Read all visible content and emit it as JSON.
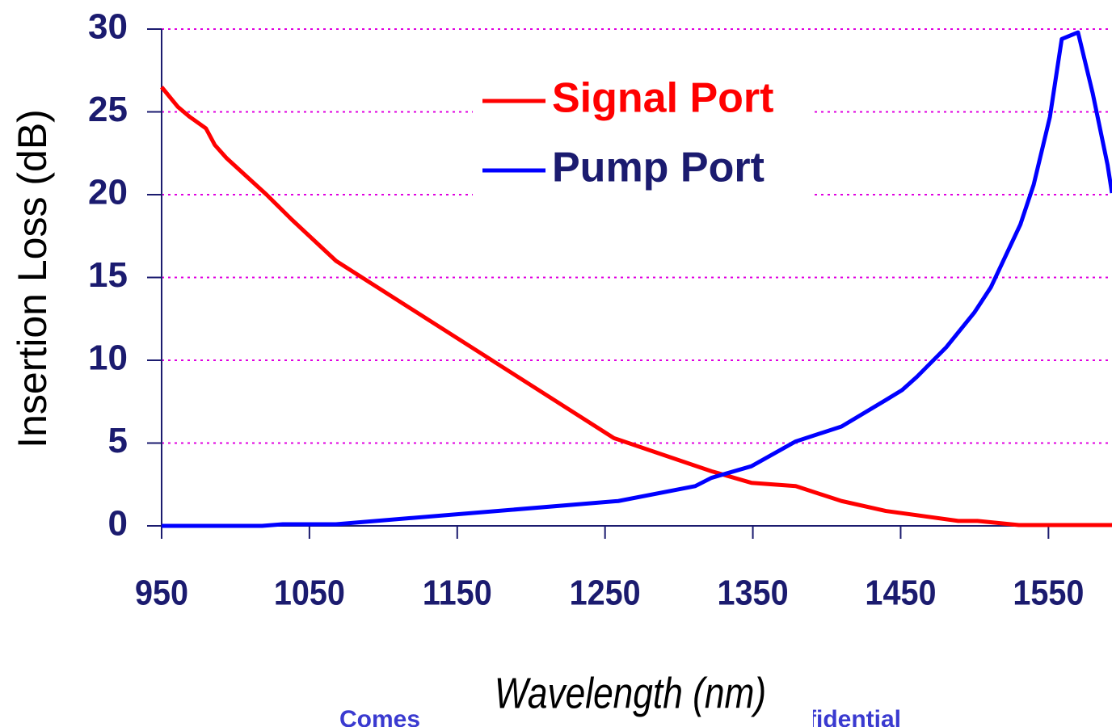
{
  "chart_data": {
    "type": "line",
    "x_label": "Wavelength (nm)",
    "y_label": "Insertion Loss (dB)",
    "footer": [
      "Comes",
      "fidential"
    ],
    "xlim": [
      950,
      1593
    ],
    "ylim": [
      0,
      30
    ],
    "xticks": [
      950,
      1050,
      1150,
      1250,
      1350,
      1450,
      1550
    ],
    "yticks": [
      0,
      5,
      10,
      15,
      20,
      25,
      30
    ],
    "grid": true,
    "grid_color": "#e000e0",
    "legend": "upper center",
    "series": [
      {
        "name": "Signal Port",
        "color": "#ff0000",
        "x": [
          950,
          961,
          969,
          980,
          986,
          994,
          1021,
          1038,
          1050,
          1068,
          1256,
          1289,
          1322,
          1349,
          1379,
          1410,
          1440,
          1489,
          1502,
          1530,
          1593
        ],
        "values": [
          26.5,
          25.3,
          24.7,
          24.0,
          23.0,
          22.2,
          20.0,
          18.5,
          17.5,
          16.0,
          5.3,
          4.3,
          3.3,
          2.6,
          2.4,
          1.5,
          0.9,
          0.3,
          0.3,
          0.05,
          0.05
        ]
      },
      {
        "name": "Pump Port",
        "color": "#0000ff",
        "x": [
          950,
          1018,
          1032,
          1068,
          1259,
          1311,
          1322,
          1349,
          1379,
          1410,
          1440,
          1451,
          1461,
          1481,
          1500,
          1511,
          1531,
          1540,
          1551,
          1559,
          1570,
          1580,
          1590,
          1593
        ],
        "values": [
          0,
          0,
          0.1,
          0.1,
          1.5,
          2.4,
          2.9,
          3.6,
          5.1,
          6.0,
          7.6,
          8.2,
          9.0,
          10.8,
          12.9,
          14.4,
          18.2,
          20.6,
          24.7,
          29.4,
          29.8,
          26.1,
          21.8,
          20.1
        ]
      }
    ]
  }
}
